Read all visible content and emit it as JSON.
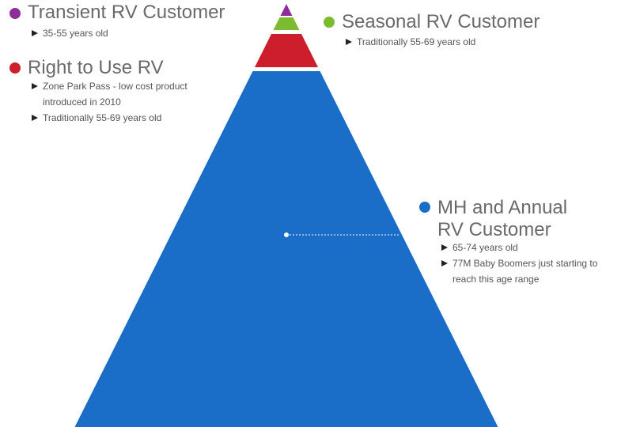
{
  "segments": [
    {
      "title": "Transient RV Customer",
      "color": "#8e2d9a",
      "bullets": [
        "35-55 years old"
      ]
    },
    {
      "title": "Seasonal RV Customer",
      "color": "#7cbb2f",
      "bullets": [
        "Traditionally 55-69 years old"
      ]
    },
    {
      "title": "Right to Use RV",
      "color": "#cc1f2b",
      "bullets": [
        "Zone Park Pass - low cost product introduced in 2010",
        "Traditionally 55-69 years old"
      ]
    },
    {
      "title": "MH and Annual RV Customer",
      "color": "#1a6ec8",
      "bullets": [
        "65-74 years old",
        "77M Baby Boomers just starting to reach this age range"
      ]
    }
  ]
}
